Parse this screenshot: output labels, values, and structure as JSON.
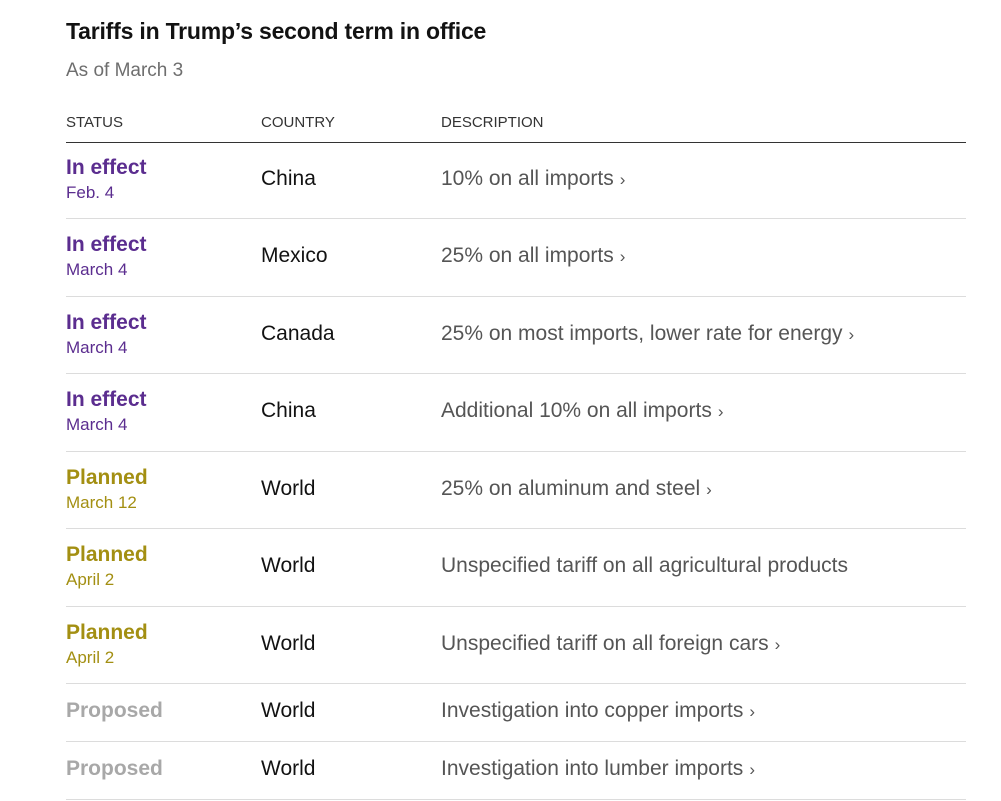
{
  "header": {
    "title": "Tariffs in Trump’s second term in office",
    "subtitle": "As of March 3"
  },
  "table": {
    "columns": [
      "STATUS",
      "COUNTRY",
      "DESCRIPTION"
    ],
    "status_colors": {
      "In effect": "#5b2d8f",
      "Planned": "#a38f12",
      "Proposed": "#a8a8a8"
    },
    "rows": [
      {
        "status": "In effect",
        "date": "Feb. 4",
        "country": "China",
        "description": "10% on all imports",
        "has_link": true
      },
      {
        "status": "In effect",
        "date": "March 4",
        "country": "Mexico",
        "description": "25% on all imports",
        "has_link": true
      },
      {
        "status": "In effect",
        "date": "March 4",
        "country": "Canada",
        "description": "25% on most imports, lower rate for energy",
        "has_link": true
      },
      {
        "status": "In effect",
        "date": "March 4",
        "country": "China",
        "description": "Additional 10% on all imports",
        "has_link": true
      },
      {
        "status": "Planned",
        "date": "March 12",
        "country": "World",
        "description": "25% on aluminum and steel",
        "has_link": true
      },
      {
        "status": "Planned",
        "date": "April 2",
        "country": "World",
        "description": "Unspecified tariff on all agricultural products",
        "has_link": false
      },
      {
        "status": "Planned",
        "date": "April 2",
        "country": "World",
        "description": "Unspecified tariff on all foreign cars",
        "has_link": true
      },
      {
        "status": "Proposed",
        "date": "",
        "country": "World",
        "description": "Investigation into copper imports",
        "has_link": true
      },
      {
        "status": "Proposed",
        "date": "",
        "country": "World",
        "description": "Investigation into lumber imports",
        "has_link": true
      }
    ],
    "chevron_glyph": "›"
  }
}
